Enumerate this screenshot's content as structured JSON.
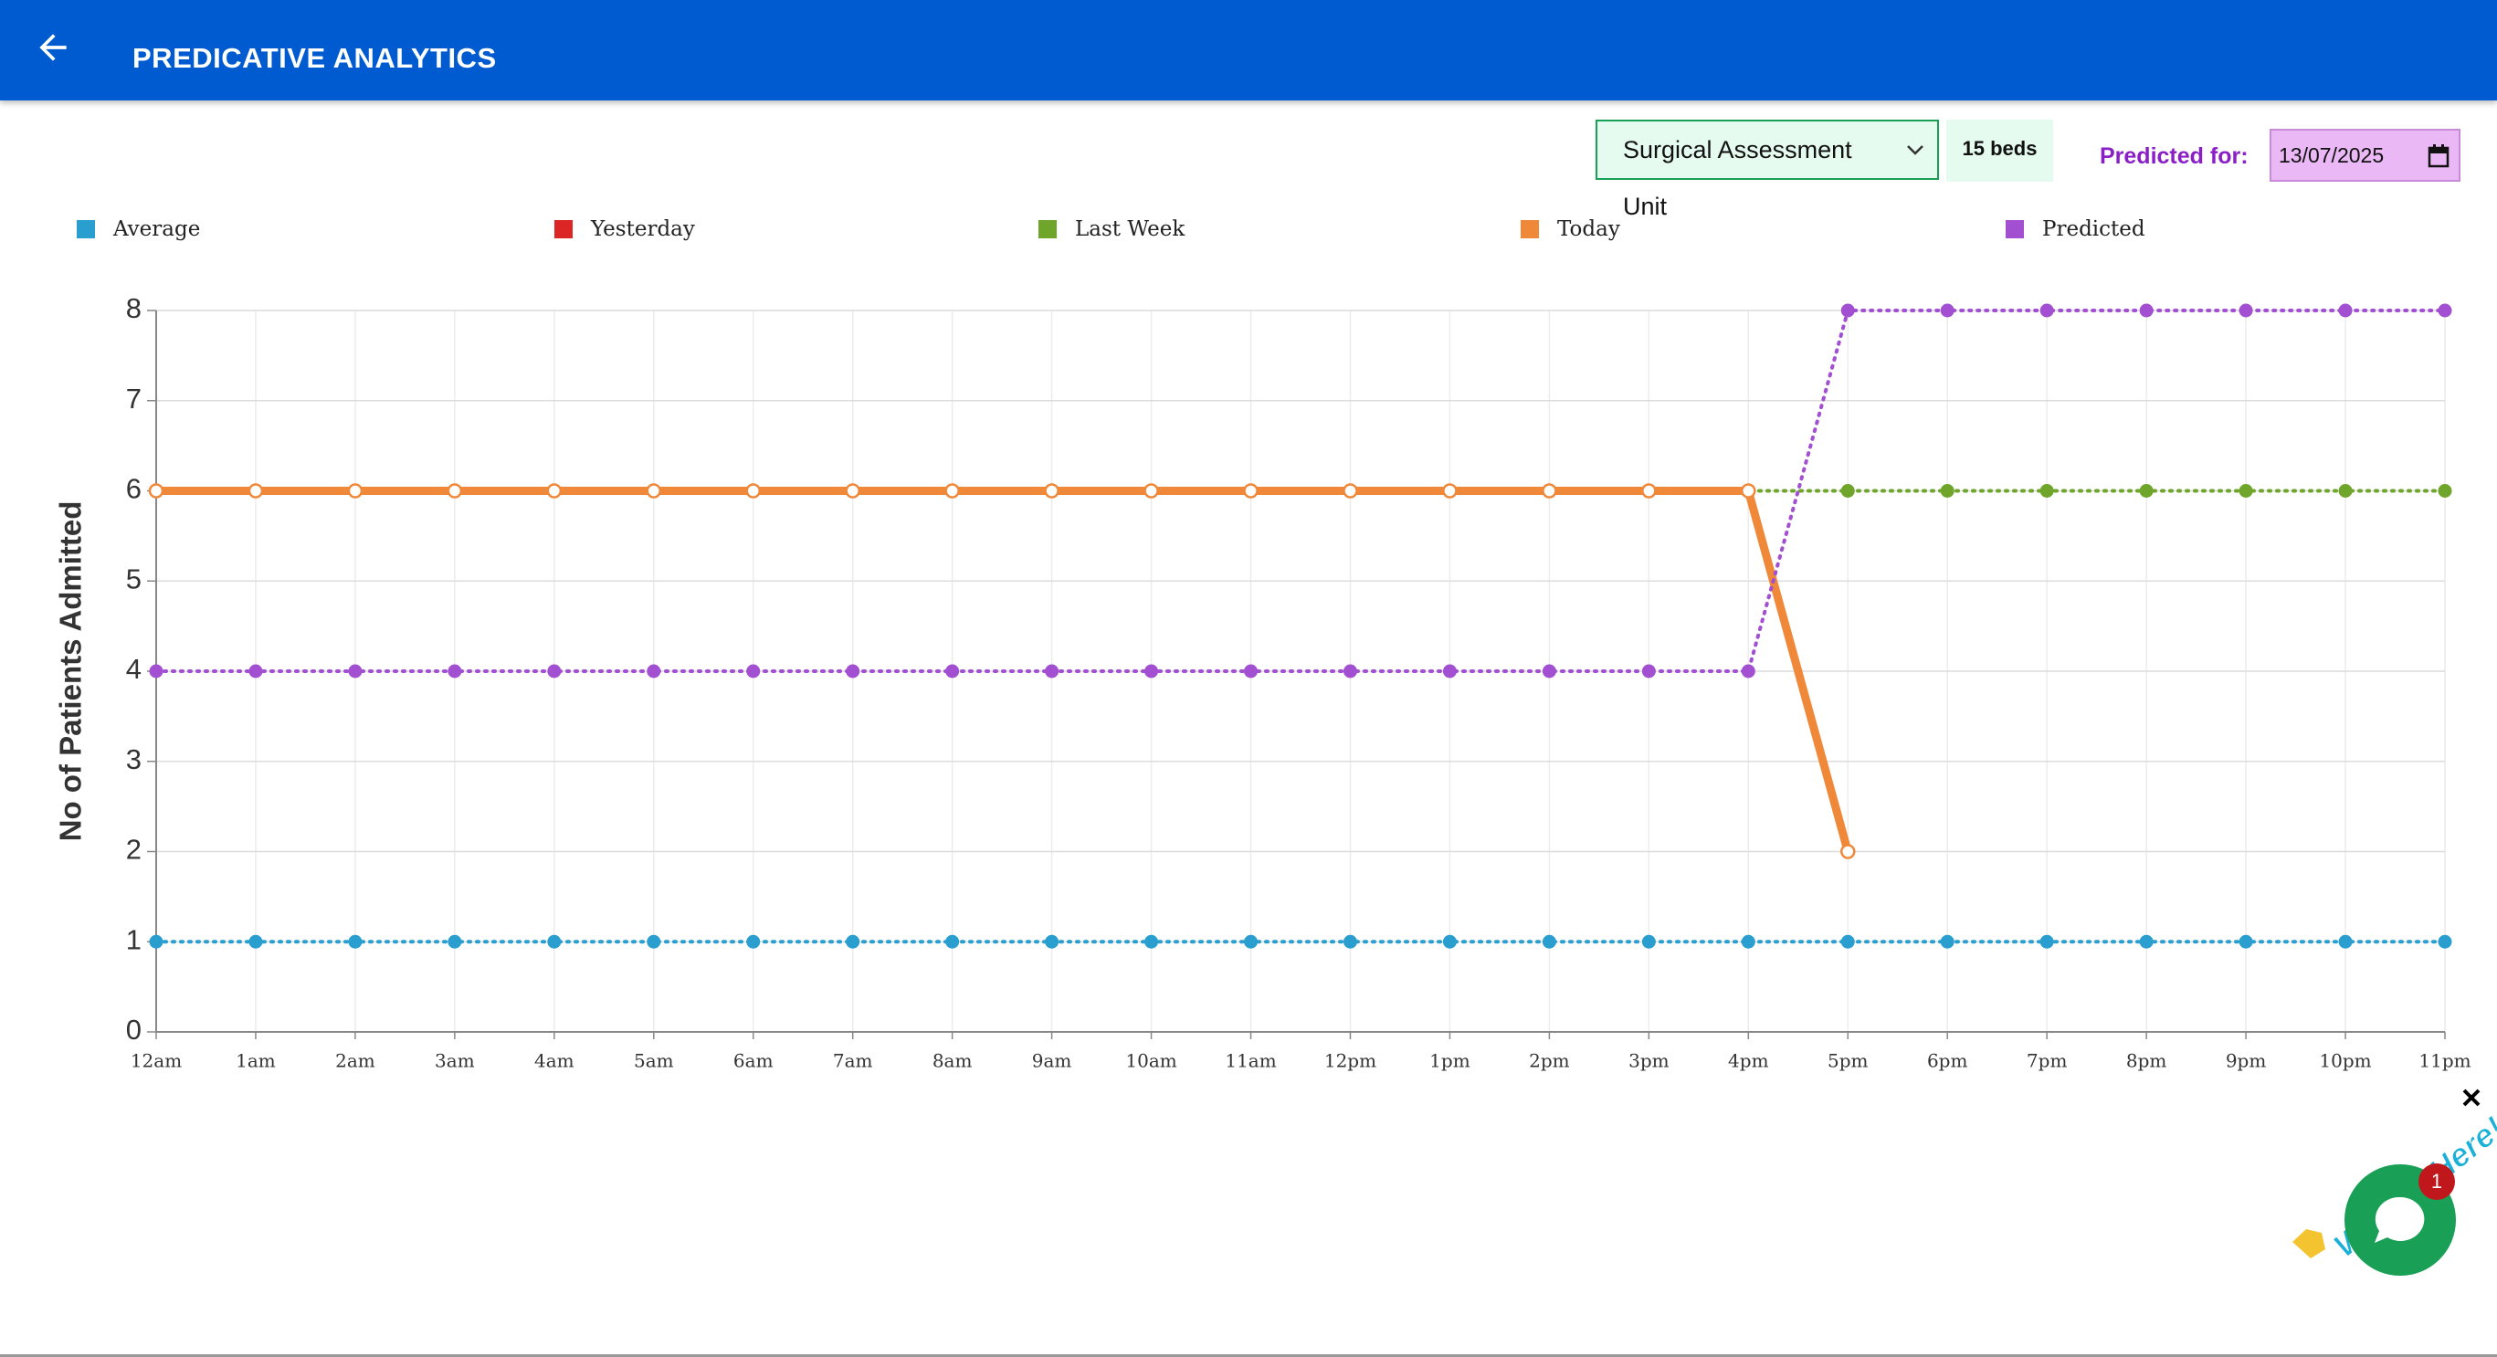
{
  "header": {
    "title": "PREDICATIVE ANALYTICS"
  },
  "controls": {
    "unit": "Surgical Assessment Unit",
    "beds": "15 beds",
    "predicted_for_label": "Predicted for:",
    "date": "13/07/2025"
  },
  "widget": {
    "tagline": "We Are Here!",
    "badge": "1"
  },
  "chart_data": {
    "type": "line",
    "y_label": "No of Patients Admitted",
    "categories": [
      "12am",
      "1am",
      "2am",
      "3am",
      "4am",
      "5am",
      "6am",
      "7am",
      "8am",
      "9am",
      "10am",
      "11am",
      "12pm",
      "1pm",
      "2pm",
      "3pm",
      "4pm",
      "5pm",
      "6pm",
      "7pm",
      "8pm",
      "9pm",
      "10pm",
      "11pm"
    ],
    "series": [
      {
        "name": "Average",
        "color": "#2a9fcf",
        "style": "dotted",
        "values": [
          1,
          1,
          1,
          1,
          1,
          1,
          1,
          1,
          1,
          1,
          1,
          1,
          1,
          1,
          1,
          1,
          1,
          1,
          1,
          1,
          1,
          1,
          1,
          1
        ]
      },
      {
        "name": "Yesterday",
        "color": "#dc2626",
        "style": "dotted",
        "values": [
          null,
          null,
          null,
          null,
          null,
          null,
          null,
          null,
          null,
          null,
          null,
          null,
          null,
          null,
          null,
          null,
          null,
          null,
          null,
          null,
          null,
          null,
          null,
          null
        ]
      },
      {
        "name": "Last Week",
        "color": "#6ea52a",
        "style": "dotted",
        "values": [
          6,
          6,
          6,
          6,
          6,
          6,
          6,
          6,
          6,
          6,
          6,
          6,
          6,
          6,
          6,
          6,
          6,
          6,
          6,
          6,
          6,
          6,
          6,
          6
        ]
      },
      {
        "name": "Today",
        "color": "#f0883a",
        "style": "solid",
        "values": [
          6,
          6,
          6,
          6,
          6,
          6,
          6,
          6,
          6,
          6,
          6,
          6,
          6,
          6,
          6,
          6,
          6,
          2,
          null,
          null,
          null,
          null,
          null,
          null
        ]
      },
      {
        "name": "Predicted",
        "color": "#a24fd1",
        "style": "dotted",
        "values": [
          4,
          4,
          4,
          4,
          4,
          4,
          4,
          4,
          4,
          4,
          4,
          4,
          4,
          4,
          4,
          4,
          4,
          8,
          8,
          8,
          8,
          8,
          8,
          8
        ]
      }
    ],
    "ylim": [
      0,
      8
    ],
    "yticks": [
      0,
      1,
      2,
      3,
      4,
      5,
      6,
      7,
      8
    ],
    "grid": true
  }
}
